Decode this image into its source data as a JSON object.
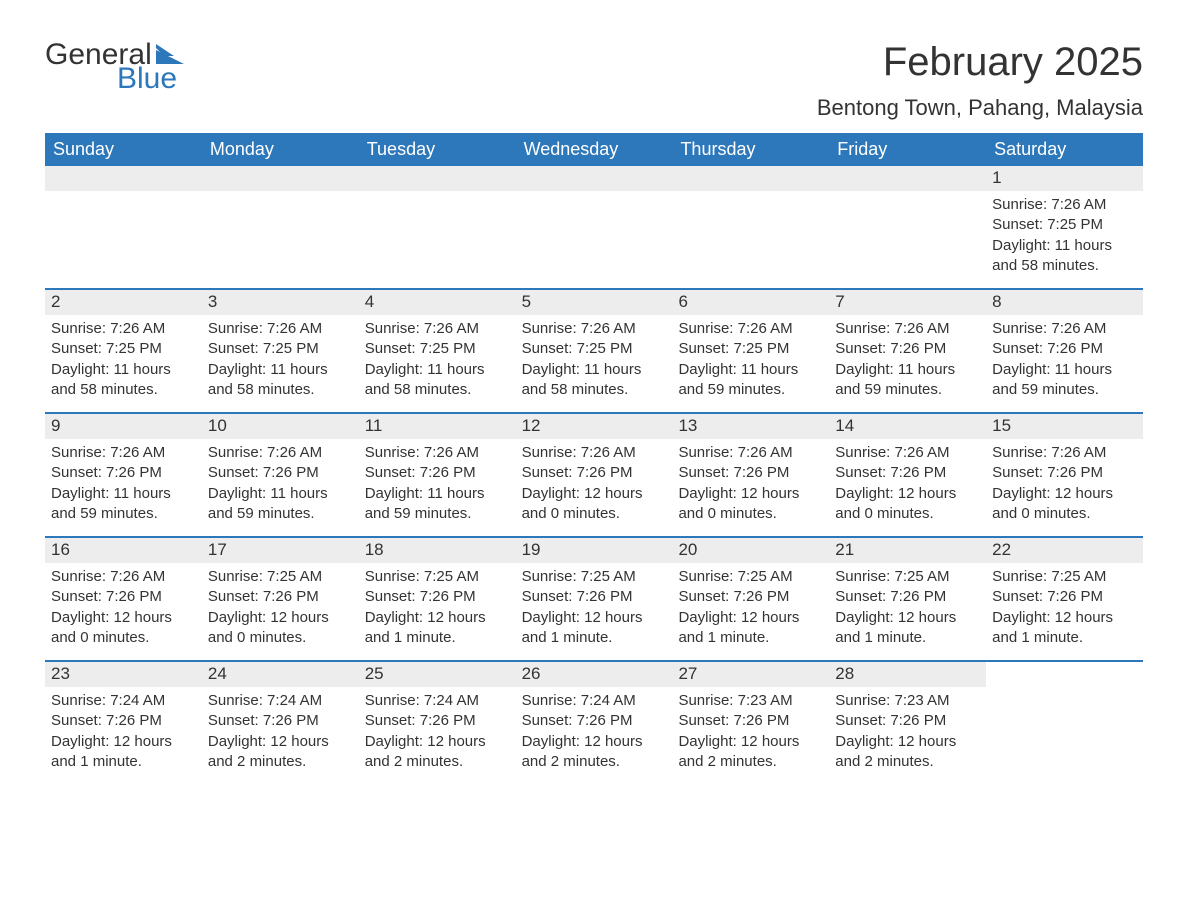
{
  "logo": {
    "text_general": "General",
    "text_blue": "Blue",
    "shape_color": "#2d77bb",
    "text_general_color": "#333333"
  },
  "header": {
    "month_title": "February 2025",
    "location": "Bentong Town, Pahang, Malaysia",
    "title_color": "#333333",
    "title_fontsize": 40,
    "location_fontsize": 22
  },
  "calendar": {
    "header_bg": "#2d77bb",
    "header_text_color": "#ffffff",
    "daynum_bg": "#ededed",
    "border_color": "#2d77bb",
    "text_color": "#333333",
    "background_color": "#ffffff",
    "body_fontsize": 15,
    "daynum_fontsize": 17,
    "weekday_fontsize": 18,
    "weekdays": [
      "Sunday",
      "Monday",
      "Tuesday",
      "Wednesday",
      "Thursday",
      "Friday",
      "Saturday"
    ],
    "weeks": [
      [
        null,
        null,
        null,
        null,
        null,
        null,
        {
          "day": "1",
          "sunrise": "Sunrise: 7:26 AM",
          "sunset": "Sunset: 7:25 PM",
          "daylight1": "Daylight: 11 hours",
          "daylight2": "and 58 minutes."
        }
      ],
      [
        {
          "day": "2",
          "sunrise": "Sunrise: 7:26 AM",
          "sunset": "Sunset: 7:25 PM",
          "daylight1": "Daylight: 11 hours",
          "daylight2": "and 58 minutes."
        },
        {
          "day": "3",
          "sunrise": "Sunrise: 7:26 AM",
          "sunset": "Sunset: 7:25 PM",
          "daylight1": "Daylight: 11 hours",
          "daylight2": "and 58 minutes."
        },
        {
          "day": "4",
          "sunrise": "Sunrise: 7:26 AM",
          "sunset": "Sunset: 7:25 PM",
          "daylight1": "Daylight: 11 hours",
          "daylight2": "and 58 minutes."
        },
        {
          "day": "5",
          "sunrise": "Sunrise: 7:26 AM",
          "sunset": "Sunset: 7:25 PM",
          "daylight1": "Daylight: 11 hours",
          "daylight2": "and 58 minutes."
        },
        {
          "day": "6",
          "sunrise": "Sunrise: 7:26 AM",
          "sunset": "Sunset: 7:25 PM",
          "daylight1": "Daylight: 11 hours",
          "daylight2": "and 59 minutes."
        },
        {
          "day": "7",
          "sunrise": "Sunrise: 7:26 AM",
          "sunset": "Sunset: 7:26 PM",
          "daylight1": "Daylight: 11 hours",
          "daylight2": "and 59 minutes."
        },
        {
          "day": "8",
          "sunrise": "Sunrise: 7:26 AM",
          "sunset": "Sunset: 7:26 PM",
          "daylight1": "Daylight: 11 hours",
          "daylight2": "and 59 minutes."
        }
      ],
      [
        {
          "day": "9",
          "sunrise": "Sunrise: 7:26 AM",
          "sunset": "Sunset: 7:26 PM",
          "daylight1": "Daylight: 11 hours",
          "daylight2": "and 59 minutes."
        },
        {
          "day": "10",
          "sunrise": "Sunrise: 7:26 AM",
          "sunset": "Sunset: 7:26 PM",
          "daylight1": "Daylight: 11 hours",
          "daylight2": "and 59 minutes."
        },
        {
          "day": "11",
          "sunrise": "Sunrise: 7:26 AM",
          "sunset": "Sunset: 7:26 PM",
          "daylight1": "Daylight: 11 hours",
          "daylight2": "and 59 minutes."
        },
        {
          "day": "12",
          "sunrise": "Sunrise: 7:26 AM",
          "sunset": "Sunset: 7:26 PM",
          "daylight1": "Daylight: 12 hours",
          "daylight2": "and 0 minutes."
        },
        {
          "day": "13",
          "sunrise": "Sunrise: 7:26 AM",
          "sunset": "Sunset: 7:26 PM",
          "daylight1": "Daylight: 12 hours",
          "daylight2": "and 0 minutes."
        },
        {
          "day": "14",
          "sunrise": "Sunrise: 7:26 AM",
          "sunset": "Sunset: 7:26 PM",
          "daylight1": "Daylight: 12 hours",
          "daylight2": "and 0 minutes."
        },
        {
          "day": "15",
          "sunrise": "Sunrise: 7:26 AM",
          "sunset": "Sunset: 7:26 PM",
          "daylight1": "Daylight: 12 hours",
          "daylight2": "and 0 minutes."
        }
      ],
      [
        {
          "day": "16",
          "sunrise": "Sunrise: 7:26 AM",
          "sunset": "Sunset: 7:26 PM",
          "daylight1": "Daylight: 12 hours",
          "daylight2": "and 0 minutes."
        },
        {
          "day": "17",
          "sunrise": "Sunrise: 7:25 AM",
          "sunset": "Sunset: 7:26 PM",
          "daylight1": "Daylight: 12 hours",
          "daylight2": "and 0 minutes."
        },
        {
          "day": "18",
          "sunrise": "Sunrise: 7:25 AM",
          "sunset": "Sunset: 7:26 PM",
          "daylight1": "Daylight: 12 hours",
          "daylight2": "and 1 minute."
        },
        {
          "day": "19",
          "sunrise": "Sunrise: 7:25 AM",
          "sunset": "Sunset: 7:26 PM",
          "daylight1": "Daylight: 12 hours",
          "daylight2": "and 1 minute."
        },
        {
          "day": "20",
          "sunrise": "Sunrise: 7:25 AM",
          "sunset": "Sunset: 7:26 PM",
          "daylight1": "Daylight: 12 hours",
          "daylight2": "and 1 minute."
        },
        {
          "day": "21",
          "sunrise": "Sunrise: 7:25 AM",
          "sunset": "Sunset: 7:26 PM",
          "daylight1": "Daylight: 12 hours",
          "daylight2": "and 1 minute."
        },
        {
          "day": "22",
          "sunrise": "Sunrise: 7:25 AM",
          "sunset": "Sunset: 7:26 PM",
          "daylight1": "Daylight: 12 hours",
          "daylight2": "and 1 minute."
        }
      ],
      [
        {
          "day": "23",
          "sunrise": "Sunrise: 7:24 AM",
          "sunset": "Sunset: 7:26 PM",
          "daylight1": "Daylight: 12 hours",
          "daylight2": "and 1 minute."
        },
        {
          "day": "24",
          "sunrise": "Sunrise: 7:24 AM",
          "sunset": "Sunset: 7:26 PM",
          "daylight1": "Daylight: 12 hours",
          "daylight2": "and 2 minutes."
        },
        {
          "day": "25",
          "sunrise": "Sunrise: 7:24 AM",
          "sunset": "Sunset: 7:26 PM",
          "daylight1": "Daylight: 12 hours",
          "daylight2": "and 2 minutes."
        },
        {
          "day": "26",
          "sunrise": "Sunrise: 7:24 AM",
          "sunset": "Sunset: 7:26 PM",
          "daylight1": "Daylight: 12 hours",
          "daylight2": "and 2 minutes."
        },
        {
          "day": "27",
          "sunrise": "Sunrise: 7:23 AM",
          "sunset": "Sunset: 7:26 PM",
          "daylight1": "Daylight: 12 hours",
          "daylight2": "and 2 minutes."
        },
        {
          "day": "28",
          "sunrise": "Sunrise: 7:23 AM",
          "sunset": "Sunset: 7:26 PM",
          "daylight1": "Daylight: 12 hours",
          "daylight2": "and 2 minutes."
        },
        null
      ]
    ]
  }
}
